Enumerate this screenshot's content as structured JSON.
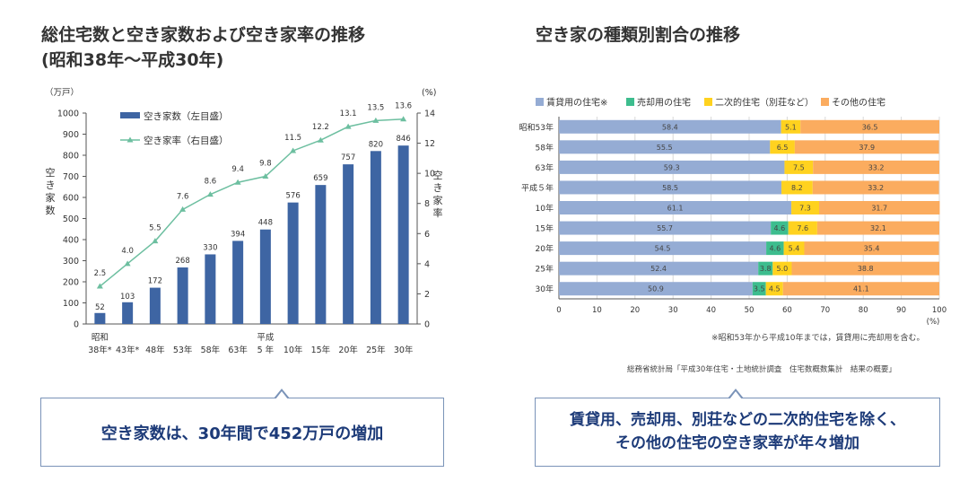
{
  "left_title_line1": "総住宅数と空き家数および空き家率の推移",
  "left_title_line2": "(昭和38年～平成30年)",
  "right_title": "空き家の種類別割合の推移",
  "left_callout": "空き家数は、30年間で452万戸の増加",
  "right_callout_line1": "賃貸用、売却用、別荘などの二次的住宅を除く、",
  "right_callout_line2": "その他の住宅の空き家率が年々増加",
  "right_note": "※昭和53年から平成10年までは，賃貸用に売却用を含む。",
  "right_source": "総務省統計局「平成30年住宅・土地統計調査　住宅数概数集計　結果の概要」",
  "colors": {
    "bar_blue": "#3e65a3",
    "line_green": "#6dbfa0",
    "rent": "#95acd4",
    "sale": "#3dbd8e",
    "secondary": "#ffd21f",
    "other": "#fbac5f",
    "grid": "#d8d8d8",
    "axis": "#555555"
  },
  "chart_data": [
    {
      "type": "bar+line",
      "title": "総住宅数と空き家数および空き家率の推移",
      "left_unit": "（万戸）",
      "right_unit": "(%)",
      "ylabel_left": "空き家数",
      "ylabel_right": "空き家率",
      "ylim_left": [
        0,
        1000
      ],
      "ylim_right": [
        0,
        14
      ],
      "yticks_left": [
        "0",
        "100",
        "200",
        "300",
        "400",
        "500",
        "600",
        "700",
        "800",
        "900",
        "1000"
      ],
      "yticks_right": [
        "0",
        "2",
        "4",
        "6",
        "8",
        "10",
        "12",
        "14"
      ],
      "era_labels": [
        {
          "index": 0,
          "label": "昭和"
        },
        {
          "index": 6,
          "label": "平成"
        }
      ],
      "categories": [
        "38年*",
        "43年*",
        "48年",
        "53年",
        "58年",
        "63年",
        "5 年",
        "10年",
        "15年",
        "20年",
        "25年",
        "30年"
      ],
      "series": [
        {
          "name": "空き家数（左目盛）",
          "kind": "bar",
          "axis": "left",
          "values": [
            52,
            103,
            172,
            268,
            330,
            394,
            448,
            576,
            659,
            757,
            820,
            846
          ]
        },
        {
          "name": "空き家率（右目盛）",
          "kind": "line",
          "axis": "right",
          "values": [
            2.5,
            4.0,
            5.5,
            7.6,
            8.6,
            9.4,
            9.8,
            11.5,
            12.2,
            13.1,
            13.5,
            13.6
          ]
        }
      ]
    },
    {
      "type": "stacked-bar-horizontal",
      "title": "空き家の種類別割合の推移",
      "xlim": [
        0,
        100
      ],
      "x_unit": "(%)",
      "xticks": [
        "0",
        "10",
        "20",
        "30",
        "40",
        "50",
        "60",
        "70",
        "80",
        "90",
        "100"
      ],
      "categories": [
        "昭和53年",
        "58年",
        "63年",
        "平成５年",
        "10年",
        "15年",
        "20年",
        "25年",
        "30年"
      ],
      "series": [
        {
          "name": "賃貸用の住宅※",
          "color_key": "rent",
          "values": [
            58.4,
            55.5,
            59.3,
            58.5,
            61.1,
            55.7,
            54.5,
            52.4,
            50.9
          ]
        },
        {
          "name": "売却用の住宅",
          "color_key": "sale",
          "values": [
            0,
            0,
            0,
            0,
            0,
            4.6,
            4.6,
            3.8,
            3.5
          ]
        },
        {
          "name": "二次的住宅（別荘など）",
          "color_key": "secondary",
          "values": [
            5.1,
            6.5,
            7.5,
            8.2,
            7.3,
            7.6,
            5.4,
            5.0,
            4.5
          ]
        },
        {
          "name": "その他の住宅",
          "color_key": "other",
          "values": [
            36.5,
            37.9,
            33.2,
            33.2,
            31.7,
            32.1,
            35.4,
            38.8,
            41.1
          ]
        }
      ]
    }
  ]
}
